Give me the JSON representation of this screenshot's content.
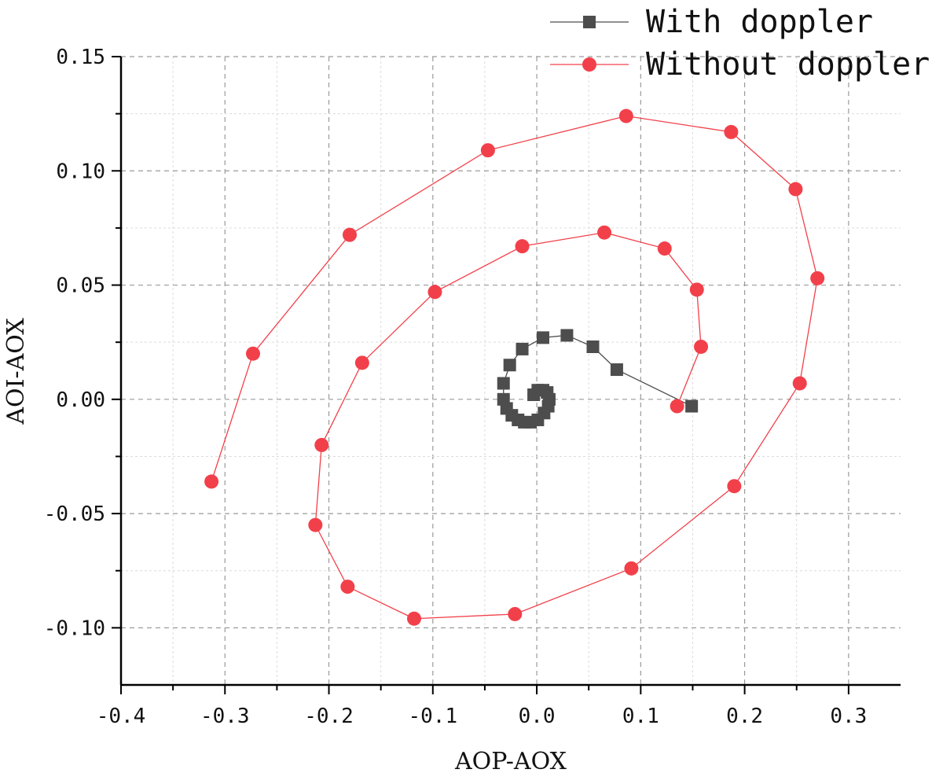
{
  "chart_data": {
    "type": "scatter",
    "xlabel": "AOP-AOX",
    "ylabel": "AOI-AOX",
    "xlim": [
      -0.4,
      0.35
    ],
    "ylim": [
      -0.125,
      0.15
    ],
    "x_ticks": [
      "-0.4",
      "-0.3",
      "-0.2",
      "-0.1",
      "0.0",
      "0.1",
      "0.2",
      "0.3"
    ],
    "y_ticks": [
      "-0.10",
      "-0.05",
      "0.00",
      "0.05",
      "0.10",
      "0.15"
    ],
    "grid": true,
    "legend": "top-right",
    "series": [
      {
        "name": "With doppler",
        "marker": "square",
        "color": "#4d4d4d",
        "x": [
          0.149,
          0.077,
          0.054,
          0.029,
          0.006,
          -0.014,
          -0.026,
          -0.032,
          -0.032,
          -0.029,
          -0.024,
          -0.018,
          -0.012,
          -0.006,
          0.001,
          0.007,
          0.011,
          0.012,
          0.01,
          0.006,
          0.001,
          -0.003
        ],
        "y": [
          -0.003,
          0.013,
          0.023,
          0.028,
          0.027,
          0.022,
          0.015,
          0.007,
          0.0,
          -0.004,
          -0.007,
          -0.009,
          -0.01,
          -0.01,
          -0.009,
          -0.006,
          -0.003,
          0.0,
          0.003,
          0.004,
          0.004,
          0.002
        ]
      },
      {
        "name": "Without doppler",
        "marker": "circle",
        "color": "#f2404a",
        "x": [
          0.135,
          0.158,
          0.154,
          0.123,
          0.065,
          -0.014,
          -0.098,
          -0.168,
          -0.207,
          -0.213,
          -0.182,
          -0.118,
          -0.021,
          0.091,
          0.19,
          0.253,
          0.27,
          0.249,
          0.187,
          0.086,
          -0.047,
          -0.18,
          -0.273,
          -0.313
        ],
        "y": [
          -0.003,
          0.023,
          0.048,
          0.066,
          0.073,
          0.067,
          0.047,
          0.016,
          -0.02,
          -0.055,
          -0.082,
          -0.096,
          -0.094,
          -0.074,
          -0.038,
          0.007,
          0.053,
          0.092,
          0.117,
          0.124,
          0.109,
          0.072,
          0.02,
          -0.036
        ]
      }
    ]
  }
}
